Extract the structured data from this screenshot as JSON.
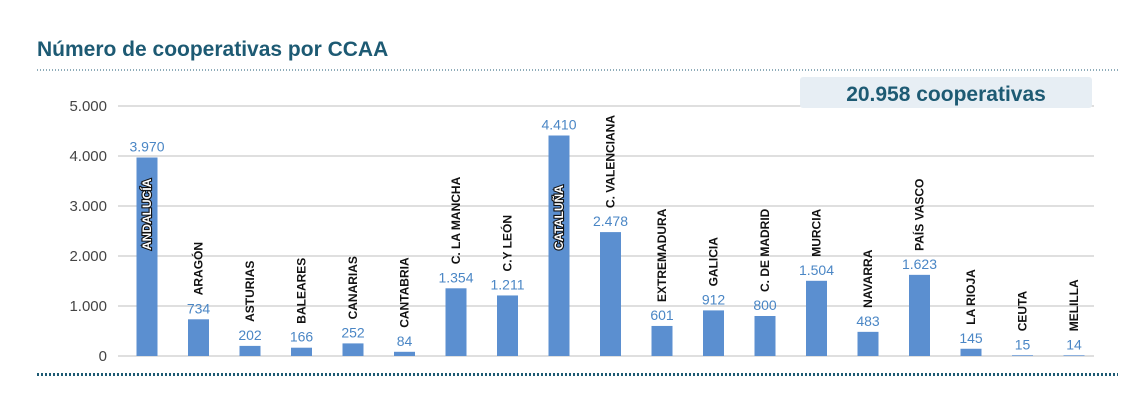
{
  "title": "Número de cooperativas por CCAA",
  "total_badge": "20.958 cooperativas",
  "colors": {
    "bar": "#5b8fd0",
    "value_label": "#4a86c5",
    "title": "#1d5a73",
    "badge_bg": "#e7eef4",
    "grid": "#bfbfbf",
    "dotted_rule": "#1d5a73"
  },
  "chart_data": {
    "type": "bar",
    "title": "Número de cooperativas por CCAA",
    "xlabel": "",
    "ylabel": "",
    "ylim": [
      0,
      5000
    ],
    "yticks": [
      0,
      1000,
      2000,
      3000,
      4000,
      5000
    ],
    "ytick_labels": [
      "0",
      "1.000",
      "2.000",
      "3.000",
      "4.000",
      "5.000"
    ],
    "grid": true,
    "categories": [
      "ANDALUCÍA",
      "ARAGÓN",
      "ASTURIAS",
      "BALEARES",
      "CANARIAS",
      "CANTABRIA",
      "C. LA MANCHA",
      "C.Y LEÓN",
      "CATALUÑA",
      "C. VALENCIANA",
      "EXTREMADURA",
      "GALICIA",
      "C. DE MADRID",
      "MURCIA",
      "NAVARRA",
      "PAÍS VASCO",
      "LA RIOJA",
      "CEUTA",
      "MELILLA"
    ],
    "values": [
      3970,
      734,
      202,
      166,
      252,
      84,
      1354,
      1211,
      4410,
      2478,
      601,
      912,
      800,
      1504,
      483,
      1623,
      145,
      15,
      14
    ],
    "value_labels": [
      "3.970",
      "734",
      "202",
      "166",
      "252",
      "84",
      "1.354",
      "1.211",
      "4.410",
      "2.478",
      "601",
      "912",
      "800",
      "1.504",
      "483",
      "1.623",
      "145",
      "15",
      "14"
    ]
  }
}
